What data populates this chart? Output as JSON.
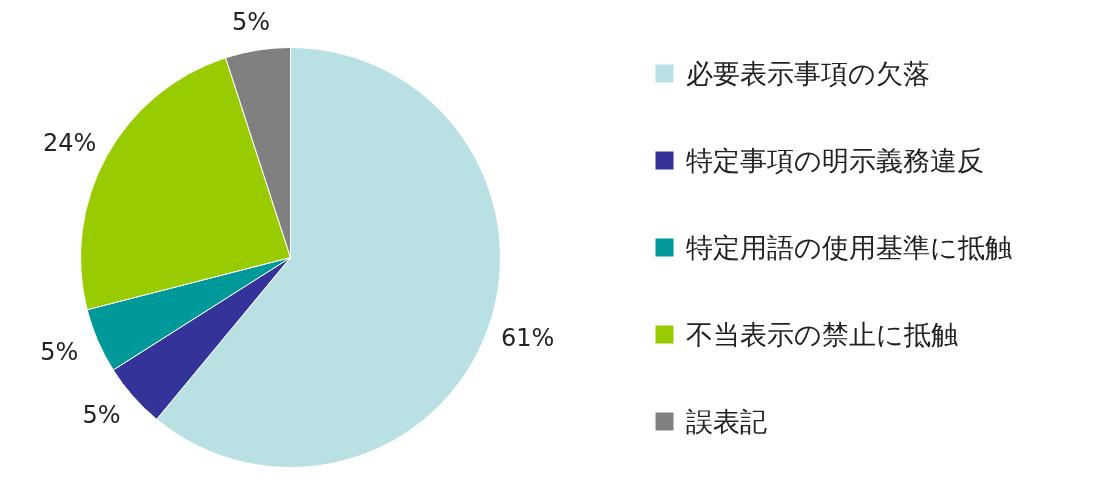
{
  "chart_data": {
    "type": "pie",
    "categories": [
      "必要表示事項の欠落",
      "特定事項の明示義務違反",
      "特定用語の使用基準に抵触",
      "不当表示の禁止に抵触",
      "誤表記"
    ],
    "values": [
      61,
      5,
      5,
      24,
      5
    ],
    "colors": [
      "#b9e0e3",
      "#333399",
      "#009999",
      "#99cc00",
      "#808080"
    ],
    "value_labels": [
      "61%",
      "5%",
      "5%",
      "24%",
      "5%"
    ],
    "legend": "right"
  }
}
